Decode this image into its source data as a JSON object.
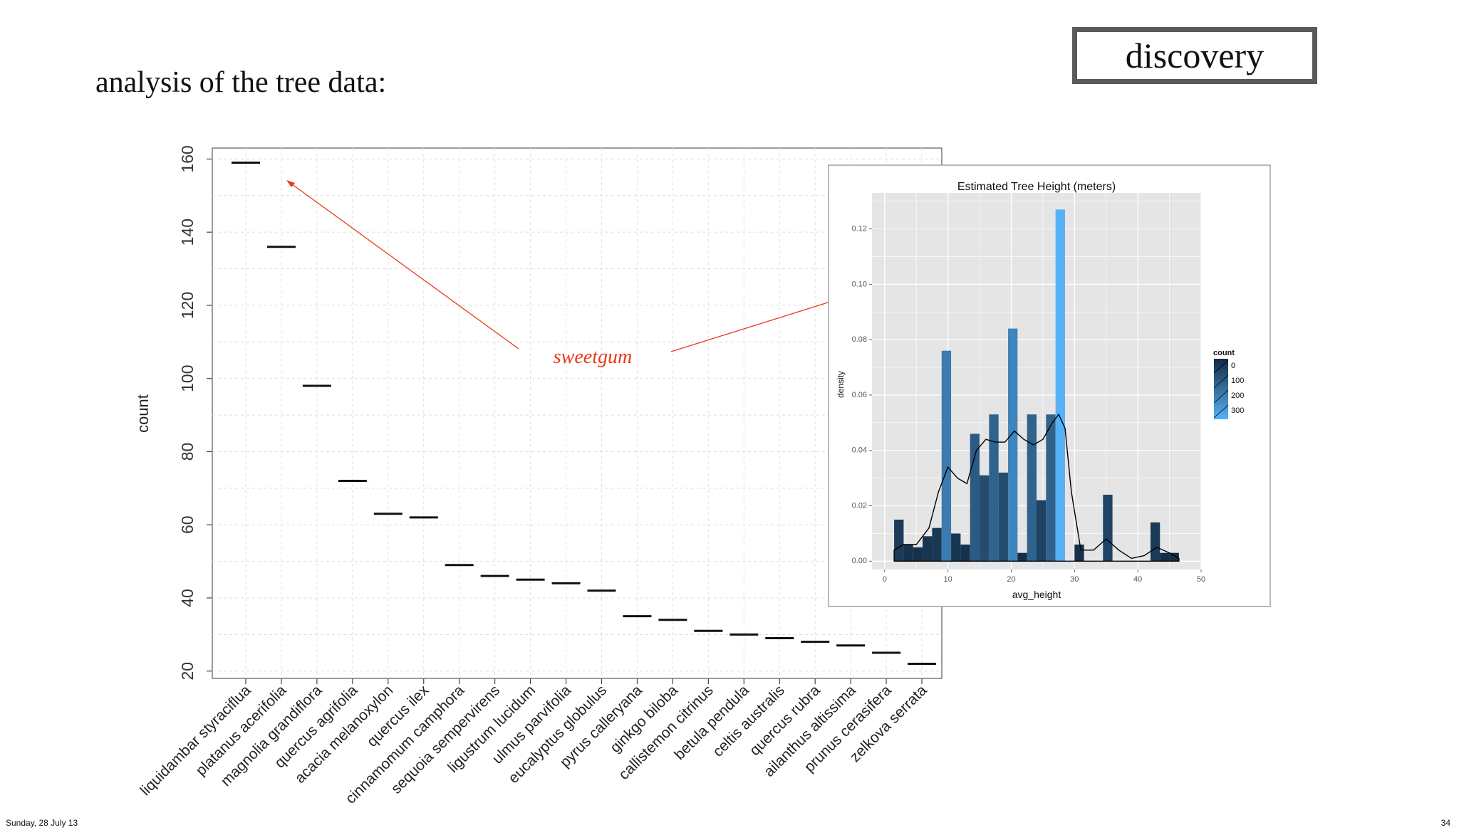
{
  "slide": {
    "title": "analysis of the tree data:",
    "badge": "discovery",
    "footer_date": "Sunday, 28 July 13",
    "page_number": "34",
    "annotation": "sweetgum",
    "annotation_color": "#e8391a"
  },
  "chart_data": [
    {
      "type": "scatter",
      "marker": "horizontal-dash",
      "ylabel": "count",
      "ylim": [
        18,
        163
      ],
      "yticks": [
        20,
        40,
        60,
        80,
        100,
        120,
        140,
        160
      ],
      "grid": true,
      "categories": [
        "liquidambar styraciflua",
        "platanus acerifolia",
        "magnolia grandiflora",
        "quercus agrifolia",
        "acacia melanoxylon",
        "quercus ilex",
        "cinnamomum camphora",
        "sequoia sempervirens",
        "ligustrum lucidum",
        "ulmus parvifolia",
        "eucalyptus globulus",
        "pyrus calleryana",
        "ginkgo biloba",
        "callistemon citrinus",
        "betula pendula",
        "celtis australis",
        "quercus rubra",
        "ailanthus altissima",
        "prunus cerasifera",
        "zelkova serrata"
      ],
      "values": [
        159,
        136,
        98,
        72,
        63,
        62,
        49,
        46,
        45,
        44,
        42,
        35,
        34,
        31,
        30,
        29,
        28,
        27,
        25,
        22
      ]
    },
    {
      "type": "bar",
      "subtype": "histogram-with-density",
      "title": "Estimated Tree Height (meters)",
      "xlabel": "avg_height",
      "ylabel": "density",
      "xlim": [
        -2,
        50
      ],
      "ylim": [
        -0.003,
        0.133
      ],
      "xticks": [
        0,
        10,
        20,
        30,
        40,
        50
      ],
      "yticks": [
        0.0,
        0.02,
        0.04,
        0.06,
        0.08,
        0.1,
        0.12
      ],
      "ytick_labels": [
        "0.00",
        "0.02",
        "0.04",
        "0.06",
        "0.08",
        "0.10",
        "0.12"
      ],
      "legend": {
        "title": "count",
        "position": "right",
        "labels": [
          "0",
          "100",
          "200",
          "300"
        ]
      },
      "colors": {
        "low": "#132b43",
        "high": "#56b1f7",
        "panel": "#e5e5e5",
        "grid": "#ffffff"
      },
      "bars": [
        {
          "x0": 1.5,
          "x1": 3.0,
          "density": 0.015,
          "count": 40
        },
        {
          "x0": 3.0,
          "x1": 4.5,
          "density": 0.006,
          "count": 15
        },
        {
          "x0": 4.5,
          "x1": 6.0,
          "density": 0.005,
          "count": 12
        },
        {
          "x0": 6.0,
          "x1": 7.5,
          "density": 0.009,
          "count": 25
        },
        {
          "x0": 7.5,
          "x1": 9.0,
          "density": 0.012,
          "count": 32
        },
        {
          "x0": 9.0,
          "x1": 10.5,
          "density": 0.076,
          "count": 205
        },
        {
          "x0": 10.5,
          "x1": 12.0,
          "density": 0.01,
          "count": 27
        },
        {
          "x0": 12.0,
          "x1": 13.5,
          "density": 0.006,
          "count": 15
        },
        {
          "x0": 13.5,
          "x1": 15.0,
          "density": 0.046,
          "count": 122
        },
        {
          "x0": 15.0,
          "x1": 16.5,
          "density": 0.031,
          "count": 83
        },
        {
          "x0": 16.5,
          "x1": 18.0,
          "density": 0.053,
          "count": 143
        },
        {
          "x0": 18.0,
          "x1": 19.5,
          "density": 0.032,
          "count": 85
        },
        {
          "x0": 19.5,
          "x1": 21.0,
          "density": 0.084,
          "count": 226
        },
        {
          "x0": 21.0,
          "x1": 22.5,
          "density": 0.003,
          "count": 8
        },
        {
          "x0": 22.5,
          "x1": 24.0,
          "density": 0.053,
          "count": 143
        },
        {
          "x0": 24.0,
          "x1": 25.5,
          "density": 0.022,
          "count": 58
        },
        {
          "x0": 25.5,
          "x1": 27.0,
          "density": 0.053,
          "count": 143
        },
        {
          "x0": 27.0,
          "x1": 28.5,
          "density": 0.127,
          "count": 342
        },
        {
          "x0": 30.0,
          "x1": 31.5,
          "density": 0.006,
          "count": 15
        },
        {
          "x0": 34.5,
          "x1": 36.0,
          "density": 0.024,
          "count": 64
        },
        {
          "x0": 42.0,
          "x1": 43.5,
          "density": 0.014,
          "count": 38
        },
        {
          "x0": 43.5,
          "x1": 45.0,
          "density": 0.003,
          "count": 8
        },
        {
          "x0": 45.0,
          "x1": 46.5,
          "density": 0.003,
          "count": 8
        }
      ],
      "density_curve": [
        [
          1.5,
          0.004
        ],
        [
          3,
          0.006
        ],
        [
          5,
          0.006
        ],
        [
          7,
          0.012
        ],
        [
          8.5,
          0.025
        ],
        [
          10,
          0.034
        ],
        [
          11.5,
          0.03
        ],
        [
          13,
          0.028
        ],
        [
          14.5,
          0.04
        ],
        [
          16,
          0.044
        ],
        [
          17.5,
          0.043
        ],
        [
          19,
          0.043
        ],
        [
          20.5,
          0.047
        ],
        [
          22,
          0.044
        ],
        [
          23.5,
          0.042
        ],
        [
          25,
          0.044
        ],
        [
          26.5,
          0.05
        ],
        [
          27.5,
          0.053
        ],
        [
          28.5,
          0.048
        ],
        [
          29.5,
          0.025
        ],
        [
          31,
          0.004
        ],
        [
          33,
          0.004
        ],
        [
          35,
          0.008
        ],
        [
          37,
          0.004
        ],
        [
          39,
          0.001
        ],
        [
          41,
          0.002
        ],
        [
          43,
          0.005
        ],
        [
          45,
          0.003
        ],
        [
          46.5,
          0.001
        ]
      ]
    }
  ]
}
